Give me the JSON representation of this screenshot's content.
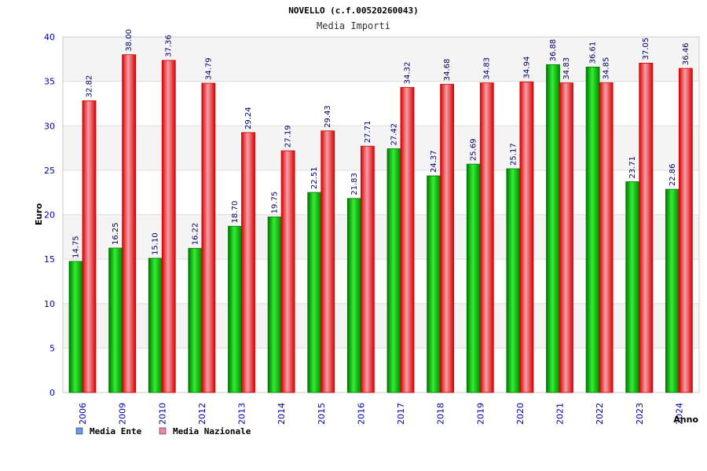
{
  "chart_data": {
    "type": "bar",
    "title": "NOVELLO (c.f.00520260043)",
    "subtitle": "Media Importi",
    "xlabel": "Anno",
    "ylabel": "Euro",
    "ylim": [
      0,
      40
    ],
    "yticks": [
      0,
      5,
      10,
      15,
      20,
      25,
      30,
      35,
      40
    ],
    "grid": true,
    "legend_position": "bottom-left",
    "categories": [
      "2006",
      "2009",
      "2010",
      "2012",
      "2013",
      "2014",
      "2015",
      "2016",
      "2017",
      "2018",
      "2019",
      "2020",
      "2021",
      "2022",
      "2023",
      "2024"
    ],
    "series": [
      {
        "name": "Media Ente",
        "color": "#00aa00",
        "legend_color": "#6699ee",
        "values": [
          14.75,
          16.25,
          15.1,
          16.22,
          18.7,
          19.75,
          22.51,
          21.83,
          27.42,
          24.37,
          25.69,
          25.17,
          36.88,
          36.61,
          23.71,
          22.86
        ],
        "labels": [
          "14.75",
          "16.25",
          "15.10",
          "16.22",
          "18.70",
          "19.75",
          "22.51",
          "21.83",
          "27.42",
          "24.37",
          "25.69",
          "25.17",
          "36.88",
          "36.61",
          "23.71",
          "22.86"
        ]
      },
      {
        "name": "Media Nazionale",
        "color": "#ee1111",
        "legend_color": "#ee88aa",
        "values": [
          32.82,
          38.0,
          37.36,
          34.79,
          29.24,
          27.19,
          29.43,
          27.71,
          34.32,
          34.68,
          34.83,
          34.94,
          34.83,
          34.85,
          37.05,
          36.46
        ],
        "labels": [
          "32.82",
          "38.00",
          "37.36",
          "34.79",
          "29.24",
          "27.19",
          "29.43",
          "27.71",
          "34.32",
          "34.68",
          "34.83",
          "34.94",
          "34.83",
          "34.85",
          "37.05",
          "36.46"
        ]
      }
    ]
  }
}
